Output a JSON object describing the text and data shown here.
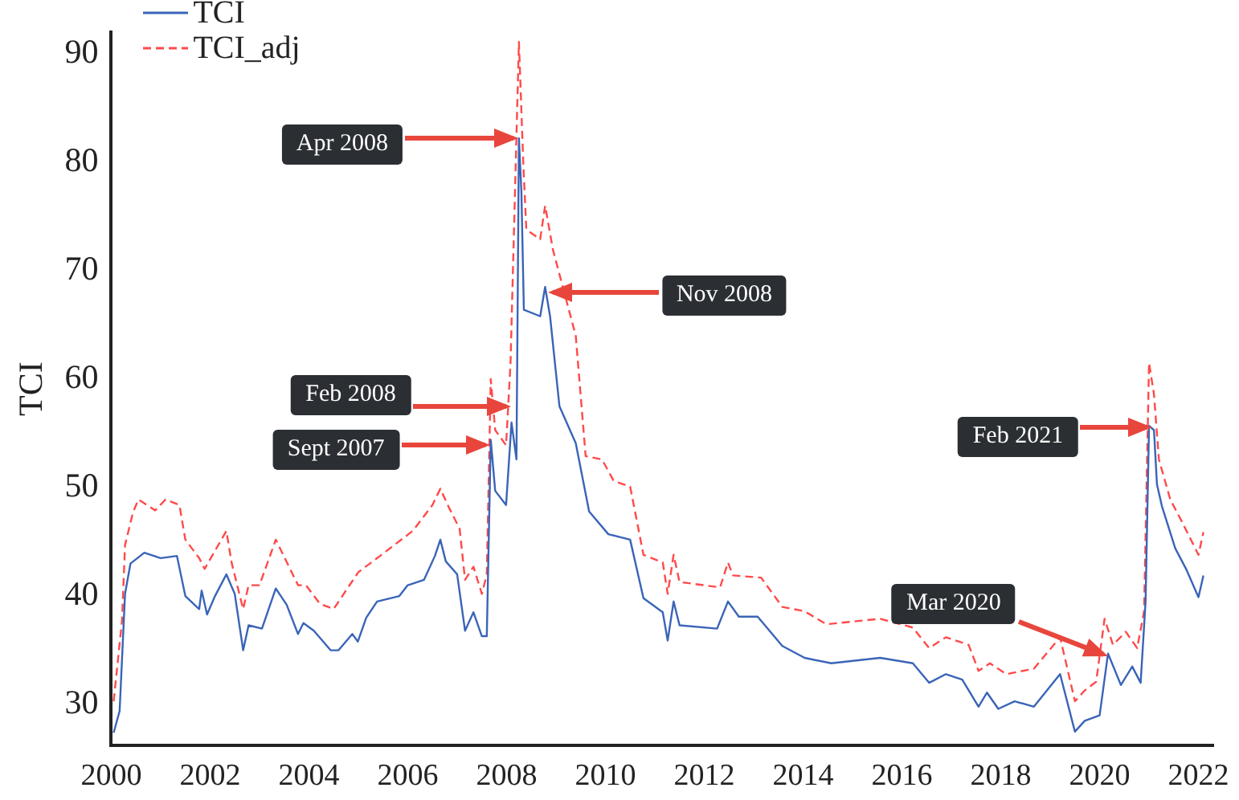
{
  "chart_data": {
    "type": "line",
    "ylabel": "TCI",
    "xlim": [
      2000,
      2022.3
    ],
    "ylim": [
      26.2,
      92
    ],
    "xticks": [
      2000,
      2002,
      2004,
      2006,
      2008,
      2010,
      2012,
      2014,
      2016,
      2018,
      2020,
      2022
    ],
    "yticks": [
      30,
      40,
      50,
      60,
      70,
      80,
      90
    ],
    "grid": false,
    "legend": "top left",
    "marker": "none",
    "series": [
      {
        "name": "TCI",
        "color": "#3a64b8",
        "line_style": "solid",
        "x": [
          2000.05,
          2000.17,
          2000.28,
          2000.39,
          2000.67,
          2001.0,
          2001.33,
          2001.5,
          2001.78,
          2001.83,
          2001.94,
          2002.1,
          2002.33,
          2002.5,
          2002.67,
          2002.78,
          2003.05,
          2003.33,
          2003.55,
          2003.78,
          2003.89,
          2004.1,
          2004.44,
          2004.6,
          2004.88,
          2004.99,
          2005.16,
          2005.38,
          2005.83,
          2006.0,
          2006.33,
          2006.55,
          2006.66,
          2006.77,
          2007.0,
          2007.16,
          2007.33,
          2007.5,
          2007.6,
          2007.68,
          2007.77,
          2007.99,
          2008.1,
          2008.2,
          2008.25,
          2008.3,
          2008.35,
          2008.68,
          2008.78,
          2008.88,
          2009.07,
          2009.4,
          2009.67,
          2010.06,
          2010.5,
          2010.77,
          2011.16,
          2011.26,
          2011.38,
          2011.5,
          2012.26,
          2012.48,
          2012.7,
          2013.08,
          2013.58,
          2014.03,
          2014.57,
          2015.56,
          2016.22,
          2016.55,
          2016.89,
          2017.22,
          2017.55,
          2017.72,
          2017.95,
          2018.28,
          2018.67,
          2019.2,
          2019.5,
          2019.7,
          2020.0,
          2020.17,
          2020.43,
          2020.66,
          2020.83,
          2020.93,
          2021.0,
          2021.1,
          2021.16,
          2021.26,
          2021.53,
          2021.76,
          2022.0,
          2022.1
        ],
        "values": [
          27.4,
          29.4,
          40.2,
          43,
          44,
          43.5,
          43.7,
          40,
          38.8,
          40.5,
          38.3,
          40,
          42,
          40.2,
          35,
          37.3,
          37,
          40.7,
          39.2,
          36.5,
          37.5,
          36.8,
          35,
          35,
          36.5,
          35.8,
          38,
          39.5,
          40,
          41,
          41.5,
          43.7,
          45.2,
          43.2,
          42,
          36.8,
          38.5,
          36.3,
          36.3,
          54.4,
          49.7,
          48.4,
          56,
          52.6,
          82.2,
          77.3,
          66.4,
          65.8,
          68.5,
          65.8,
          57.5,
          54.1,
          47.8,
          45.7,
          45.2,
          39.8,
          38.5,
          35.9,
          39.5,
          37.3,
          37,
          39.5,
          38.1,
          38.1,
          35.4,
          34.3,
          33.8,
          34.3,
          33.8,
          32,
          32.8,
          32.3,
          29.8,
          31.1,
          29.6,
          30.3,
          29.8,
          32.8,
          27.5,
          28.5,
          29,
          34.7,
          31.8,
          33.5,
          32,
          39.5,
          55.7,
          55.3,
          50.3,
          48.3,
          44.4,
          42.4,
          39.9,
          41.9
        ]
      },
      {
        "name": "TCI_adj",
        "color": "#ff4a4a",
        "line_style": "dashed",
        "x": [
          2000.05,
          2000.22,
          2000.28,
          2000.44,
          2000.55,
          2000.89,
          2001.1,
          2001.38,
          2001.5,
          2001.78,
          2001.89,
          2002.33,
          2002.44,
          2002.67,
          2002.78,
          2003.0,
          2003.33,
          2003.78,
          2003.94,
          2004.22,
          2004.5,
          2005.0,
          2005.44,
          2006.1,
          2006.5,
          2006.66,
          2006.83,
          2007.05,
          2007.16,
          2007.33,
          2007.5,
          2007.6,
          2007.68,
          2007.77,
          2007.99,
          2008.08,
          2008.25,
          2008.34,
          2008.4,
          2008.68,
          2008.78,
          2008.94,
          2009.4,
          2009.6,
          2009.93,
          2010.17,
          2010.5,
          2010.77,
          2011.16,
          2011.26,
          2011.38,
          2011.5,
          2012.32,
          2012.48,
          2012.58,
          2013.15,
          2013.58,
          2014.03,
          2014.47,
          2015.56,
          2016.22,
          2016.55,
          2016.89,
          2017.35,
          2017.55,
          2017.78,
          2018.11,
          2018.67,
          2019.2,
          2019.5,
          2019.7,
          2019.93,
          2020.1,
          2020.27,
          2020.53,
          2020.76,
          2020.9,
          2021.0,
          2021.1,
          2021.2,
          2021.43,
          2021.66,
          2022.0,
          2022.1
        ],
        "values": [
          30.3,
          37.8,
          44.7,
          47.7,
          48.9,
          47.9,
          48.9,
          48.4,
          45.2,
          43.5,
          42.5,
          46,
          43,
          38.8,
          41,
          41,
          45.2,
          41,
          41,
          39.3,
          38.8,
          42.2,
          43.7,
          46,
          48.4,
          49.9,
          48.2,
          46.2,
          41.5,
          42.7,
          40.2,
          42,
          60,
          55.3,
          53.9,
          61.5,
          91.1,
          79.7,
          73.8,
          72.9,
          76,
          71.9,
          64,
          52.9,
          52.6,
          50.6,
          50.1,
          43.8,
          43.1,
          40.2,
          43.8,
          41.3,
          40.8,
          43.1,
          41.9,
          41.7,
          39,
          38.6,
          37.4,
          37.9,
          37.1,
          35.2,
          36.2,
          35.5,
          33.1,
          33.8,
          32.8,
          33.3,
          36.2,
          30.3,
          31.3,
          32.1,
          37.9,
          35.5,
          36.7,
          35.2,
          38.6,
          61.5,
          58.6,
          52.6,
          48.9,
          46.9,
          43.8,
          45.9
        ]
      }
    ],
    "annotations": [
      {
        "text": "Apr 2008",
        "x": 2008.25,
        "y": 82.2
      },
      {
        "text": "Nov 2008",
        "x": 2008.83,
        "y": 68
      },
      {
        "text": "Feb 2008",
        "x": 2008.1,
        "y": 57.5
      },
      {
        "text": "Sept 2007",
        "x": 2007.67,
        "y": 54
      },
      {
        "text": "Mar 2020",
        "x": 2020.17,
        "y": 34.5
      },
      {
        "text": "Feb 2021",
        "x": 2021.08,
        "y": 55.5
      }
    ]
  }
}
